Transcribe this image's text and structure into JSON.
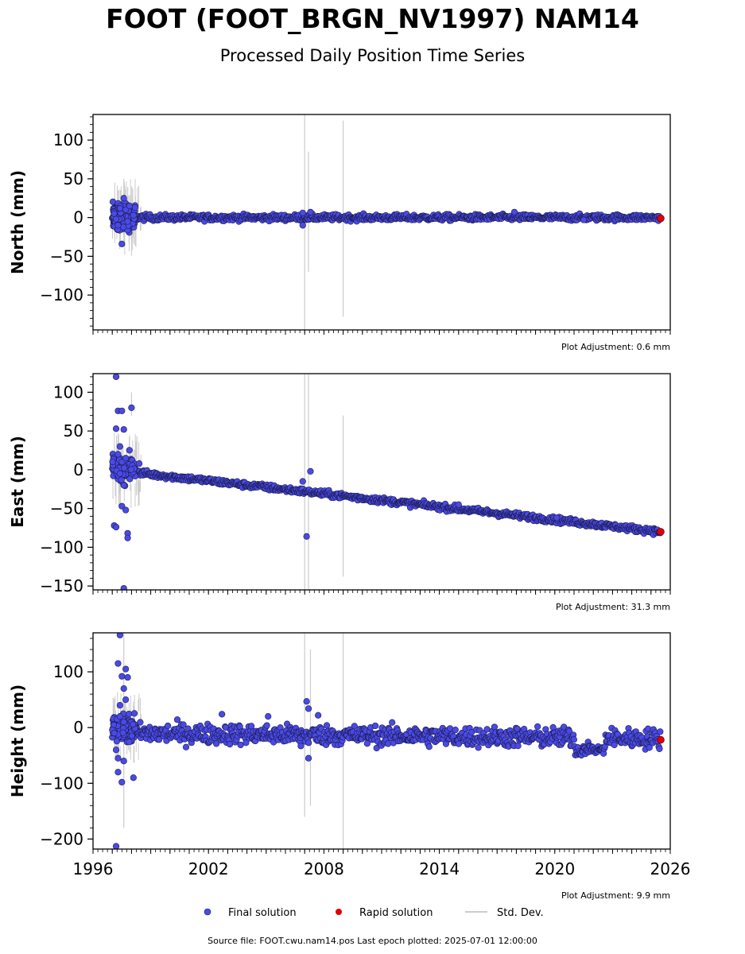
{
  "title": "FOOT (FOOT_BRGN_NV1997) NAM14",
  "subtitle": "Processed Daily Position Time Series",
  "footer": "Source file: FOOT.cwu.nam14.pos  Last epoch plotted: 2025-07-01 12:00:00",
  "colors": {
    "final": "#4a4ae6",
    "rapid": "#e00000",
    "stddev": "#cccccc"
  },
  "chart_data": {
    "type": "scatter",
    "xlim": [
      1996,
      2026
    ],
    "xticks": [
      "1996",
      "2002",
      "2008",
      "2014",
      "2020",
      "2026"
    ],
    "panels": [
      {
        "ylabel": "North (mm)",
        "ylim": [
          -145,
          133
        ],
        "yticks": [
          100,
          50,
          0,
          -50,
          -100
        ],
        "ytick_labels": [
          "100",
          "50",
          "0",
          "−50",
          "−100"
        ],
        "adjustment": "Plot Adjustment: 0.6 mm",
        "trend": {
          "start": [
            1997.0,
            0
          ],
          "end": [
            2025.5,
            0
          ],
          "noise": 2
        },
        "early_points": [
          [
            1997.1,
            5
          ],
          [
            1997.3,
            -10
          ],
          [
            1997.4,
            12
          ],
          [
            1997.5,
            -34
          ],
          [
            1997.6,
            25
          ],
          [
            1997.7,
            10
          ],
          [
            1997.8,
            -5
          ],
          [
            1997.9,
            15
          ],
          [
            1998.1,
            3
          ],
          [
            1997.2,
            -2
          ]
        ],
        "outliers": [
          [
            2006.9,
            -10
          ],
          [
            2006.9,
            6
          ],
          [
            2007.3,
            7
          ],
          [
            2017.9,
            7
          ],
          [
            2021.5,
            -3
          ]
        ],
        "stddev_bars": [
          [
            2007.0,
            -145,
            133
          ],
          [
            2007.2,
            -70,
            85
          ],
          [
            2009.0,
            -128,
            125
          ],
          [
            1997.6,
            -30,
            50
          ]
        ],
        "rapid_point": [
          2025.5,
          -1
        ]
      },
      {
        "ylabel": "East (mm)",
        "ylim": [
          -155,
          124
        ],
        "yticks": [
          100,
          50,
          0,
          -50,
          -100,
          -150
        ],
        "ytick_labels": [
          "100",
          "50",
          "0",
          "−50",
          "−100",
          "−150"
        ],
        "adjustment": "Plot Adjustment: 31.3 mm",
        "trend": {
          "start": [
            1998.0,
            -3
          ],
          "end": [
            2025.5,
            -80
          ],
          "noise": 2
        },
        "early_points": [
          [
            1997.2,
            120
          ],
          [
            1997.3,
            76
          ],
          [
            1997.5,
            76
          ],
          [
            1997.6,
            52
          ],
          [
            1998.0,
            80
          ],
          [
            1997.2,
            53
          ],
          [
            1997.1,
            -72
          ],
          [
            1997.2,
            -74
          ],
          [
            1997.8,
            -82
          ],
          [
            1997.8,
            -88
          ],
          [
            1997.5,
            -47
          ],
          [
            1997.7,
            -52
          ],
          [
            1997.6,
            -153
          ],
          [
            1997.4,
            30
          ],
          [
            1997.3,
            20
          ],
          [
            1997.5,
            10
          ],
          [
            1997.6,
            -20
          ],
          [
            1998.4,
            8
          ],
          [
            1997.4,
            -5
          ],
          [
            1997.7,
            15
          ]
        ],
        "outliers": [
          [
            2006.9,
            -15
          ],
          [
            2007.1,
            -86
          ],
          [
            2007.3,
            -2
          ],
          [
            2015.0,
            -45
          ],
          [
            2020.1,
            -62
          ]
        ],
        "stddev_bars": [
          [
            2007.0,
            -155,
            124
          ],
          [
            2007.2,
            -155,
            124
          ],
          [
            2009.0,
            -138,
            70
          ],
          [
            1998.0,
            70,
            100
          ]
        ],
        "rapid_point": [
          2025.5,
          -80
        ]
      },
      {
        "ylabel": "Height (mm)",
        "ylim": [
          -218,
          170
        ],
        "yticks": [
          100,
          0,
          -100,
          -200
        ],
        "ytick_labels": [
          "100",
          "0",
          "−100",
          "−200"
        ],
        "adjustment": "Plot Adjustment: 9.9 mm",
        "trend": {
          "start": [
            1998.0,
            -10
          ],
          "end": [
            2025.5,
            -20
          ],
          "noise": 9
        },
        "early_points": [
          [
            1997.4,
            166
          ],
          [
            1997.3,
            115
          ],
          [
            1997.7,
            105
          ],
          [
            1997.8,
            90
          ],
          [
            1997.5,
            92
          ],
          [
            1997.6,
            70
          ],
          [
            1997.4,
            40
          ],
          [
            1997.2,
            -40
          ],
          [
            1997.3,
            -80
          ],
          [
            1997.5,
            -98
          ],
          [
            1997.2,
            -213
          ],
          [
            1998.1,
            -90
          ],
          [
            1997.6,
            -60
          ],
          [
            1997.1,
            -10
          ],
          [
            1997.4,
            20
          ],
          [
            1997.7,
            50
          ],
          [
            1997.3,
            -55
          ],
          [
            1997.6,
            10
          ]
        ],
        "outliers": [
          [
            2006.8,
            -33
          ],
          [
            2007.1,
            47
          ],
          [
            2007.2,
            34
          ],
          [
            2007.2,
            -55
          ],
          [
            2007.7,
            22
          ],
          [
            2002.7,
            24
          ],
          [
            2005.1,
            20
          ]
        ],
        "dip": {
          "start": 2021.0,
          "end": 2022.6,
          "value": -40
        },
        "stddev_bars": [
          [
            2007.0,
            -160,
            170
          ],
          [
            2007.3,
            -140,
            140
          ],
          [
            2009.0,
            -218,
            170
          ],
          [
            1997.6,
            -180,
            170
          ]
        ],
        "rapid_point": [
          2025.5,
          -22
        ]
      }
    ],
    "legend": [
      "Final solution",
      "Rapid solution",
      "Std. Dev."
    ],
    "legend_position": "bottom"
  }
}
